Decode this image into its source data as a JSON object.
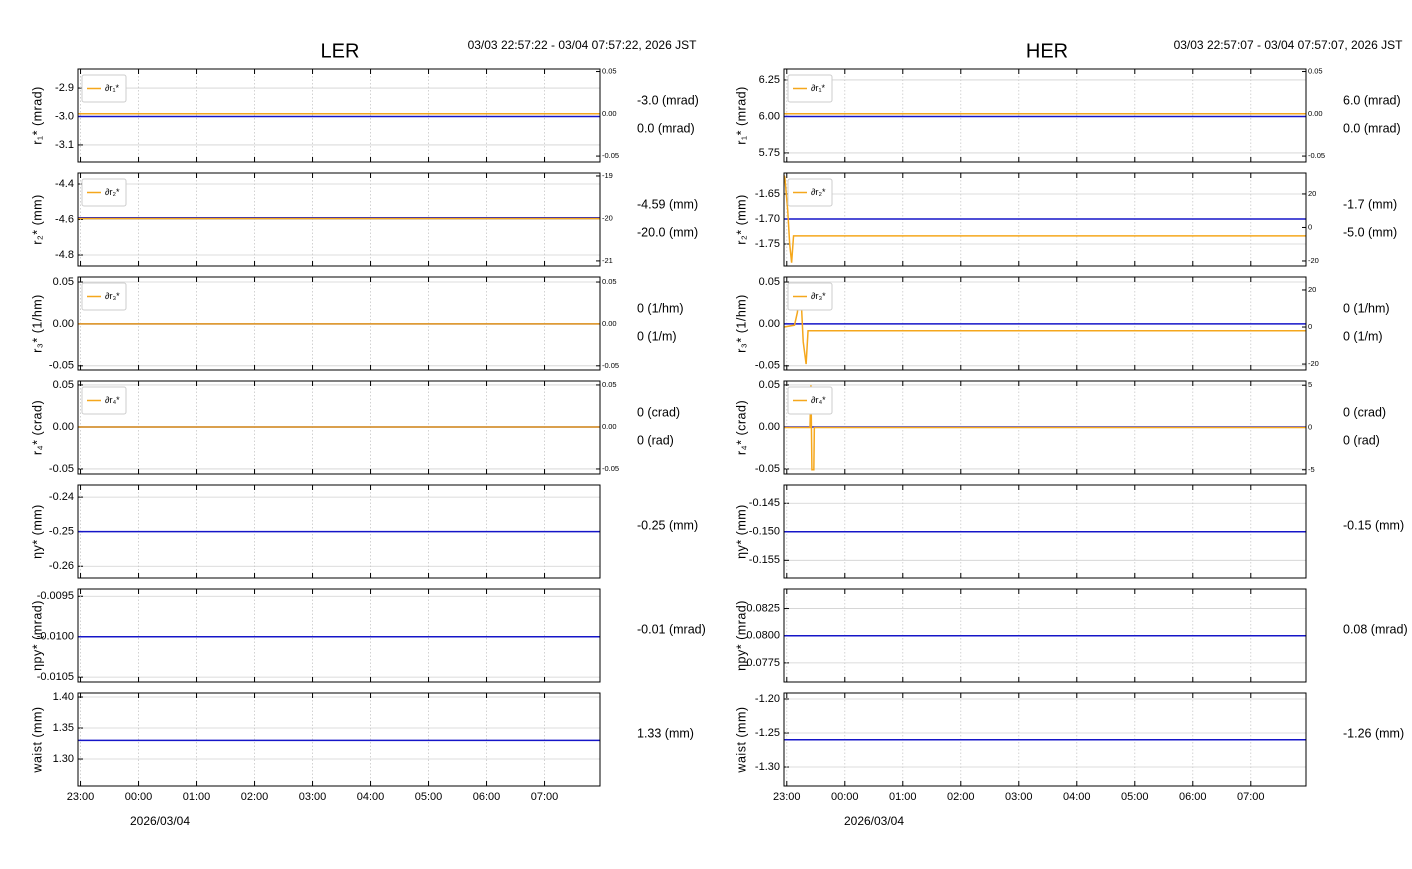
{
  "columns": [
    {
      "title": "LER",
      "subtitle": "03/03 22:57:22 - 03/04 07:57:22, 2026 JST",
      "date": "2026/03/04"
    },
    {
      "title": "HER",
      "subtitle": "03/03 22:57:07 - 03/04 07:57:07, 2026 JST",
      "date": "2026/03/04"
    }
  ],
  "chart_data": [
    {
      "type": "line",
      "ylabel": "r₁* (mrad)",
      "xlim": [
        "2026-03-03T22:57:22",
        "2026-03-04T07:57:22"
      ],
      "xticks": [
        "2026-03-03T23:00",
        "2026-03-04T00:00",
        "2026-03-04T01:00",
        "2026-03-04T02:00",
        "2026-03-04T03:00",
        "2026-03-04T04:00",
        "2026-03-04T05:00",
        "2026-03-04T06:00",
        "2026-03-04T07:00"
      ],
      "ylim": [
        -3.16,
        -2.833
      ],
      "yticks": [
        -2.9,
        {
          "value": -3.0,
          "label": "-3.0"
        },
        -3.1
      ],
      "y2lim": [
        -0.057,
        0.053
      ],
      "y2ticks": [
        0.05,
        {
          "value": 0,
          "label": "0.00"
        },
        -0.05
      ],
      "grid": true,
      "series": [
        {
          "color": "#1515c8",
          "x": [
            "2026-03-03T22:57:22",
            "2026-03-04T07:57:22"
          ],
          "values": [
            -3.0,
            -3.0
          ],
          "readout": "-3.0 (mrad)"
        },
        {
          "name": "∂r₁*",
          "color": "#f5a71c",
          "axis": "y2",
          "x": [
            "2026-03-03T22:57:22",
            "2026-03-04T07:57:22"
          ],
          "values": [
            0,
            0
          ],
          "readout": "0.0 (mrad)"
        }
      ]
    },
    {
      "type": "line",
      "ylabel": "r₂* (mm)",
      "xlim": [
        "2026-03-03T22:57:22",
        "2026-03-04T07:57:22"
      ],
      "xticks": [
        "2026-03-03T23:00",
        "2026-03-04T00:00",
        "2026-03-04T01:00",
        "2026-03-04T02:00",
        "2026-03-04T03:00",
        "2026-03-04T04:00",
        "2026-03-04T05:00",
        "2026-03-04T06:00",
        "2026-03-04T07:00"
      ],
      "ylim": [
        -4.862,
        -4.338
      ],
      "yticks": [
        -4.4,
        -4.6,
        -4.8
      ],
      "y2lim": [
        -21.12,
        -18.93
      ],
      "y2ticks": [
        -19,
        -20,
        -21
      ],
      "grid": true,
      "series": [
        {
          "color": "#1515c8",
          "x": [
            "2026-03-03T22:57:22",
            "2026-03-04T07:57:22"
          ],
          "values": [
            -4.59,
            -4.59
          ],
          "readout": "-4.59 (mm)"
        },
        {
          "name": "∂r₂*",
          "color": "#f5a71c",
          "axis": "y2",
          "x": [
            "2026-03-03T22:57:22",
            "2026-03-04T07:57:22"
          ],
          "values": [
            -20,
            -20
          ],
          "readout": "-20.0 (mm)"
        }
      ]
    },
    {
      "type": "line",
      "ylabel": "r₃* (1/hm)",
      "xlim": [
        "2026-03-03T22:57:22",
        "2026-03-04T07:57:22"
      ],
      "xticks": [
        "2026-03-03T23:00",
        "2026-03-04T00:00",
        "2026-03-04T01:00",
        "2026-03-04T02:00",
        "2026-03-04T03:00",
        "2026-03-04T04:00",
        "2026-03-04T05:00",
        "2026-03-04T06:00",
        "2026-03-04T07:00"
      ],
      "ylim": [
        -0.055,
        0.056
      ],
      "yticks": [
        0.05,
        {
          "value": 0,
          "label": "0.00"
        },
        -0.05
      ],
      "y2lim": [
        -0.055,
        0.056
      ],
      "y2ticks": [
        0.05,
        {
          "value": 0,
          "label": "0.00"
        },
        -0.05
      ],
      "grid": true,
      "series": [
        {
          "color": "#1515c8",
          "x": [
            "2026-03-03T22:57:22",
            "2026-03-04T07:57:22"
          ],
          "values": [
            0,
            0
          ],
          "readout": "0 (1/hm)"
        },
        {
          "name": "∂r₃*",
          "color": "#f5a71c",
          "axis": "y2",
          "x": [
            "2026-03-03T22:57:22",
            "2026-03-04T07:57:22"
          ],
          "values": [
            0,
            0
          ],
          "readout": "0 (1/m)"
        }
      ]
    },
    {
      "type": "line",
      "ylabel": "r₄* (crad)",
      "xlim": [
        "2026-03-03T22:57:22",
        "2026-03-04T07:57:22"
      ],
      "xticks": [
        "2026-03-03T23:00",
        "2026-03-04T00:00",
        "2026-03-04T01:00",
        "2026-03-04T02:00",
        "2026-03-04T03:00",
        "2026-03-04T04:00",
        "2026-03-04T05:00",
        "2026-03-04T06:00",
        "2026-03-04T07:00"
      ],
      "ylim": [
        -0.056,
        0.0547
      ],
      "yticks": [
        0.05,
        {
          "value": 0,
          "label": "0.00"
        },
        -0.05
      ],
      "y2lim": [
        -0.056,
        0.0547
      ],
      "y2ticks": [
        0.05,
        {
          "value": 0,
          "label": "0.00"
        },
        -0.05
      ],
      "grid": true,
      "series": [
        {
          "color": "#1515c8",
          "x": [
            "2026-03-03T22:57:22",
            "2026-03-04T07:57:22"
          ],
          "values": [
            0,
            0
          ],
          "readout": "0 (crad)"
        },
        {
          "name": "∂r₄*",
          "color": "#f5a71c",
          "axis": "y2",
          "x": [
            "2026-03-03T22:57:22",
            "2026-03-04T07:57:22"
          ],
          "values": [
            0,
            0
          ],
          "readout": "0 (rad)"
        }
      ]
    },
    {
      "type": "line",
      "ylabel": "ηy* (mm)",
      "xlim": [
        "2026-03-03T22:57:22",
        "2026-03-04T07:57:22"
      ],
      "xticks": [
        "2026-03-03T23:00",
        "2026-03-04T00:00",
        "2026-03-04T01:00",
        "2026-03-04T02:00",
        "2026-03-04T03:00",
        "2026-03-04T04:00",
        "2026-03-04T05:00",
        "2026-03-04T06:00",
        "2026-03-04T07:00"
      ],
      "ylim": [
        -0.2634,
        -0.2365
      ],
      "yticks": [
        -0.24,
        -0.25,
        -0.26
      ],
      "grid": true,
      "series": [
        {
          "color": "#1515c8",
          "x": [
            "2026-03-03T22:57:22",
            "2026-03-04T07:57:22"
          ],
          "values": [
            -0.25,
            -0.25
          ],
          "readout": "-0.25 (mm)"
        }
      ]
    },
    {
      "type": "line",
      "ylabel": "ηpy* (mrad)",
      "xlim": [
        "2026-03-03T22:57:22",
        "2026-03-04T07:57:22"
      ],
      "xticks": [
        "2026-03-03T23:00",
        "2026-03-04T00:00",
        "2026-03-04T01:00",
        "2026-03-04T02:00",
        "2026-03-04T03:00",
        "2026-03-04T04:00",
        "2026-03-04T05:00",
        "2026-03-04T06:00",
        "2026-03-04T07:00"
      ],
      "ylim": [
        -0.01056,
        -0.00941
      ],
      "yticks": [
        -0.0095,
        {
          "value": -0.01,
          "label": "-0.0100"
        },
        -0.0105
      ],
      "grid": true,
      "series": [
        {
          "color": "#1515c8",
          "x": [
            "2026-03-03T22:57:22",
            "2026-03-04T07:57:22"
          ],
          "values": [
            -0.01,
            -0.01
          ],
          "readout": "-0.01 (mrad)"
        }
      ]
    },
    {
      "type": "line",
      "ylabel": "waist (mm)",
      "xlim": [
        "2026-03-03T22:57:22",
        "2026-03-04T07:57:22"
      ],
      "xticks": [
        {
          "value": "2026-03-03T23:00",
          "label": "23:00"
        },
        {
          "value": "2026-03-04T00:00",
          "label": "00:00"
        },
        {
          "value": "2026-03-04T01:00",
          "label": "01:00"
        },
        {
          "value": "2026-03-04T02:00",
          "label": "02:00"
        },
        {
          "value": "2026-03-04T03:00",
          "label": "03:00"
        },
        {
          "value": "2026-03-04T04:00",
          "label": "04:00"
        },
        {
          "value": "2026-03-04T05:00",
          "label": "05:00"
        },
        {
          "value": "2026-03-04T06:00",
          "label": "06:00"
        },
        {
          "value": "2026-03-04T07:00",
          "label": "07:00"
        }
      ],
      "ylim": [
        1.2565,
        1.4065
      ],
      "yticks": [
        {
          "value": 1.4,
          "label": "1.40"
        },
        {
          "value": 1.35,
          "label": "1.35"
        },
        {
          "value": 1.3,
          "label": "1.30"
        }
      ],
      "grid": true,
      "series": [
        {
          "color": "#1515c8",
          "x": [
            "2026-03-03T22:57:22",
            "2026-03-04T07:57:22"
          ],
          "values": [
            1.33,
            1.33
          ],
          "readout": "1.33 (mm)"
        }
      ]
    },
    {
      "type": "line",
      "ylabel": "r₁* (mrad)",
      "xlim": [
        "2026-03-03T22:57:07",
        "2026-03-04T07:57:07"
      ],
      "xticks": [
        "2026-03-03T23:00",
        "2026-03-04T00:00",
        "2026-03-04T01:00",
        "2026-03-04T02:00",
        "2026-03-04T03:00",
        "2026-03-04T04:00",
        "2026-03-04T05:00",
        "2026-03-04T06:00",
        "2026-03-04T07:00"
      ],
      "ylim": [
        5.688,
        6.325
      ],
      "yticks": [
        6.25,
        {
          "value": 6.0,
          "label": "6.00"
        },
        5.75
      ],
      "y2lim": [
        -0.057,
        0.053
      ],
      "y2ticks": [
        0.05,
        {
          "value": 0,
          "label": "0.00"
        },
        -0.05
      ],
      "grid": true,
      "series": [
        {
          "color": "#1515c8",
          "x": [
            "2026-03-03T22:57:07",
            "2026-03-04T07:57:07"
          ],
          "values": [
            6.0,
            6.0
          ],
          "readout": "6.0 (mrad)"
        },
        {
          "name": "∂r₁*",
          "color": "#f5a71c",
          "axis": "y2",
          "x": [
            "2026-03-03T22:57:07",
            "2026-03-04T07:57:07"
          ],
          "values": [
            0,
            0
          ],
          "readout": "0.0 (mrad)"
        }
      ]
    },
    {
      "type": "line",
      "ylabel": "r₂* (mm)",
      "xlim": [
        "2026-03-03T22:57:07",
        "2026-03-04T07:57:07"
      ],
      "xticks": [
        "2026-03-03T23:00",
        "2026-03-04T00:00",
        "2026-03-04T01:00",
        "2026-03-04T02:00",
        "2026-03-04T03:00",
        "2026-03-04T04:00",
        "2026-03-04T05:00",
        "2026-03-04T06:00",
        "2026-03-04T07:00"
      ],
      "ylim": [
        -1.794,
        -1.608
      ],
      "yticks": [
        -1.65,
        {
          "value": -1.7,
          "label": "-1.70"
        },
        -1.75
      ],
      "y2lim": [
        -23,
        32.5
      ],
      "y2ticks": [
        20,
        0,
        -20
      ],
      "grid": true,
      "series": [
        {
          "color": "#1515c8",
          "x": [
            "2026-03-03T22:57:07",
            "2026-03-04T07:57:07"
          ],
          "values": [
            -1.7,
            -1.7
          ],
          "readout": "-1.7 (mm)"
        },
        {
          "name": "∂r₂*",
          "color": "#f5a71c",
          "axis": "y2",
          "x": [
            "2026-03-03T22:57:07",
            "2026-03-03T22:58:00",
            "2026-03-03T23:01:00",
            "2026-03-03T23:03:00",
            "2026-03-03T23:05:00",
            "2026-03-03T23:07:00",
            "2026-03-04T07:57:07"
          ],
          "values": [
            31,
            30,
            10,
            -10,
            -21,
            -5,
            -5
          ],
          "readout": "-5.0 (mm)"
        }
      ]
    },
    {
      "type": "line",
      "ylabel": "r₃* (1/hm)",
      "xlim": [
        "2026-03-03T22:57:07",
        "2026-03-04T07:57:07"
      ],
      "xticks": [
        "2026-03-03T23:00",
        "2026-03-04T00:00",
        "2026-03-04T01:00",
        "2026-03-04T02:00",
        "2026-03-04T03:00",
        "2026-03-04T04:00",
        "2026-03-04T05:00",
        "2026-03-04T06:00",
        "2026-03-04T07:00"
      ],
      "ylim": [
        -0.055,
        0.056
      ],
      "yticks": [
        0.05,
        {
          "value": 0,
          "label": "0.00"
        },
        -0.05
      ],
      "y2lim": [
        -23.2,
        27
      ],
      "y2ticks": [
        20,
        0,
        -20
      ],
      "grid": true,
      "series": [
        {
          "color": "#1515c8",
          "x": [
            "2026-03-03T22:57:07",
            "2026-03-04T07:57:07"
          ],
          "values": [
            0,
            0
          ],
          "readout": "0 (1/hm)"
        },
        {
          "name": "∂r₃*",
          "color": "#f5a71c",
          "axis": "y2",
          "x": [
            "2026-03-03T22:57:07",
            "2026-03-03T23:08:00",
            "2026-03-03T23:11:00",
            "2026-03-03T23:14:00",
            "2026-03-03T23:17:00",
            "2026-03-03T23:20:00",
            "2026-03-03T23:22:00",
            "2026-03-04T07:57:07"
          ],
          "values": [
            0,
            1,
            8,
            24,
            -8,
            -20,
            -2,
            -2
          ],
          "readout": "0 (1/m)"
        }
      ]
    },
    {
      "type": "line",
      "ylabel": "r₄* (crad)",
      "xlim": [
        "2026-03-03T22:57:07",
        "2026-03-04T07:57:07"
      ],
      "xticks": [
        "2026-03-03T23:00",
        "2026-03-04T00:00",
        "2026-03-04T01:00",
        "2026-03-04T02:00",
        "2026-03-04T03:00",
        "2026-03-04T04:00",
        "2026-03-04T05:00",
        "2026-03-04T06:00",
        "2026-03-04T07:00"
      ],
      "ylim": [
        -0.056,
        0.0547
      ],
      "yticks": [
        0.05,
        {
          "value": 0,
          "label": "0.00"
        },
        -0.05
      ],
      "y2lim": [
        -5.5,
        5.5
      ],
      "y2ticks": [
        5,
        0,
        -5
      ],
      "grid": true,
      "series": [
        {
          "color": "#1515c8",
          "x": [
            "2026-03-03T22:57:07",
            "2026-03-04T07:57:07"
          ],
          "values": [
            0,
            0
          ],
          "readout": "0 (crad)"
        },
        {
          "name": "∂r₄*",
          "color": "#f5a71c",
          "axis": "y2",
          "x": [
            "2026-03-03T22:57:07",
            "2026-03-03T23:24:00",
            "2026-03-03T23:25:00",
            "2026-03-03T23:26:00",
            "2026-03-03T23:28:00",
            "2026-03-03T23:28:30",
            "2026-03-04T07:57:07"
          ],
          "values": [
            0,
            0,
            5,
            -5,
            -5,
            0,
            0
          ],
          "readout": "0 (rad)"
        }
      ]
    },
    {
      "type": "line",
      "ylabel": "ηy* (mm)",
      "xlim": [
        "2026-03-03T22:57:07",
        "2026-03-04T07:57:07"
      ],
      "xticks": [
        "2026-03-03T23:00",
        "2026-03-04T00:00",
        "2026-03-04T01:00",
        "2026-03-04T02:00",
        "2026-03-04T03:00",
        "2026-03-04T04:00",
        "2026-03-04T05:00",
        "2026-03-04T06:00",
        "2026-03-04T07:00"
      ],
      "ylim": [
        -0.1581,
        -0.1418
      ],
      "yticks": [
        -0.145,
        {
          "value": -0.15,
          "label": "-0.150"
        },
        -0.155
      ],
      "grid": true,
      "series": [
        {
          "color": "#1515c8",
          "x": [
            "2026-03-03T22:57:07",
            "2026-03-04T07:57:07"
          ],
          "values": [
            -0.15,
            -0.15
          ],
          "readout": "-0.15 (mm)"
        }
      ]
    },
    {
      "type": "line",
      "ylabel": "ηpy* (mrad)",
      "xlim": [
        "2026-03-03T22:57:07",
        "2026-03-04T07:57:07"
      ],
      "xticks": [
        "2026-03-03T23:00",
        "2026-03-04T00:00",
        "2026-03-04T01:00",
        "2026-03-04T02:00",
        "2026-03-04T03:00",
        "2026-03-04T04:00",
        "2026-03-04T05:00",
        "2026-03-04T06:00",
        "2026-03-04T07:00"
      ],
      "ylim": [
        0.07574,
        0.0843
      ],
      "yticks": [
        0.0825,
        {
          "value": 0.08,
          "label": "0.0800"
        },
        0.0775
      ],
      "grid": true,
      "series": [
        {
          "color": "#1515c8",
          "x": [
            "2026-03-03T22:57:07",
            "2026-03-04T07:57:07"
          ],
          "values": [
            0.08,
            0.08
          ],
          "readout": "0.08 (mrad)"
        }
      ]
    },
    {
      "type": "line",
      "ylabel": "waist (mm)",
      "xlim": [
        "2026-03-03T22:57:07",
        "2026-03-04T07:57:07"
      ],
      "xticks": [
        {
          "value": "2026-03-03T23:00",
          "label": "23:00"
        },
        {
          "value": "2026-03-04T00:00",
          "label": "00:00"
        },
        {
          "value": "2026-03-04T01:00",
          "label": "01:00"
        },
        {
          "value": "2026-03-04T02:00",
          "label": "02:00"
        },
        {
          "value": "2026-03-04T03:00",
          "label": "03:00"
        },
        {
          "value": "2026-03-04T04:00",
          "label": "04:00"
        },
        {
          "value": "2026-03-04T05:00",
          "label": "05:00"
        },
        {
          "value": "2026-03-04T06:00",
          "label": "06:00"
        },
        {
          "value": "2026-03-04T07:00",
          "label": "07:00"
        }
      ],
      "ylim": [
        -1.3279,
        -1.1912
      ],
      "yticks": [
        {
          "value": -1.2,
          "label": "-1.20"
        },
        {
          "value": -1.25,
          "label": "-1.25"
        },
        {
          "value": -1.3,
          "label": "-1.30"
        }
      ],
      "grid": true,
      "series": [
        {
          "color": "#1515c8",
          "x": [
            "2026-03-03T22:57:07",
            "2026-03-04T07:57:07"
          ],
          "values": [
            -1.26,
            -1.26
          ],
          "readout": "-1.26 (mm)"
        }
      ]
    }
  ]
}
